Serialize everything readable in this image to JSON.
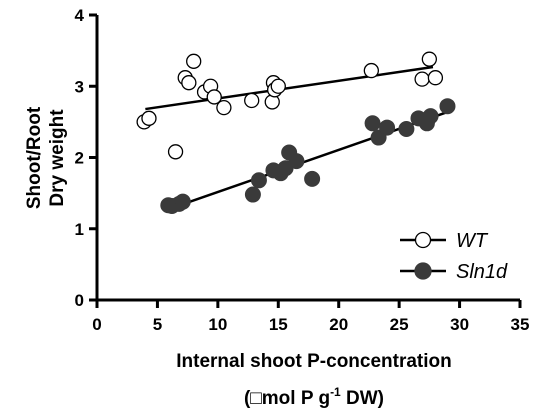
{
  "chart_data": {
    "type": "scatter",
    "xlabel": "Internal shoot P-concentration",
    "xlabel_line2_prefix": "(□mol P g",
    "xlabel_line2_sup": "-1",
    "xlabel_line2_suffix": " DW)",
    "ylabel_line1": "Shoot/Root",
    "ylabel_line2": "Dry weight",
    "xlim": [
      0,
      35
    ],
    "ylim": [
      0,
      4
    ],
    "xticks": [
      "0",
      "5",
      "10",
      "15",
      "20",
      "25",
      "30",
      "35"
    ],
    "yticks": [
      "0",
      "1",
      "2",
      "3",
      "4"
    ],
    "grid": false,
    "legend_position": "bottom-right",
    "series": [
      {
        "name": "WT",
        "marker": "open-circle",
        "color": "#000000",
        "points": [
          [
            3.9,
            2.5
          ],
          [
            4.3,
            2.55
          ],
          [
            6.5,
            2.08
          ],
          [
            7.3,
            3.12
          ],
          [
            7.6,
            3.05
          ],
          [
            8.0,
            3.35
          ],
          [
            8.9,
            2.92
          ],
          [
            9.4,
            3.0
          ],
          [
            9.7,
            2.85
          ],
          [
            10.5,
            2.7
          ],
          [
            12.8,
            2.8
          ],
          [
            14.5,
            2.78
          ],
          [
            14.6,
            3.05
          ],
          [
            14.7,
            2.95
          ],
          [
            15.0,
            3.0
          ],
          [
            22.7,
            3.22
          ],
          [
            26.9,
            3.1
          ],
          [
            27.5,
            3.38
          ],
          [
            28.0,
            3.12
          ]
        ],
        "trend": [
          [
            4,
            2.68
          ],
          [
            27.8,
            3.27
          ]
        ]
      },
      {
        "name": "Sln1d",
        "marker": "filled-circle",
        "color": "#3a3a3a",
        "points": [
          [
            5.9,
            1.33
          ],
          [
            6.2,
            1.32
          ],
          [
            6.8,
            1.35
          ],
          [
            7.1,
            1.38
          ],
          [
            12.9,
            1.48
          ],
          [
            13.4,
            1.68
          ],
          [
            14.6,
            1.82
          ],
          [
            15.2,
            1.78
          ],
          [
            15.6,
            1.85
          ],
          [
            15.9,
            2.07
          ],
          [
            16.5,
            1.95
          ],
          [
            17.8,
            1.7
          ],
          [
            22.8,
            2.48
          ],
          [
            23.3,
            2.28
          ],
          [
            24.0,
            2.42
          ],
          [
            25.6,
            2.4
          ],
          [
            26.6,
            2.55
          ],
          [
            27.3,
            2.48
          ],
          [
            27.6,
            2.58
          ],
          [
            29.0,
            2.72
          ]
        ],
        "trend": [
          [
            6,
            1.28
          ],
          [
            29.2,
            2.65
          ]
        ]
      }
    ]
  }
}
